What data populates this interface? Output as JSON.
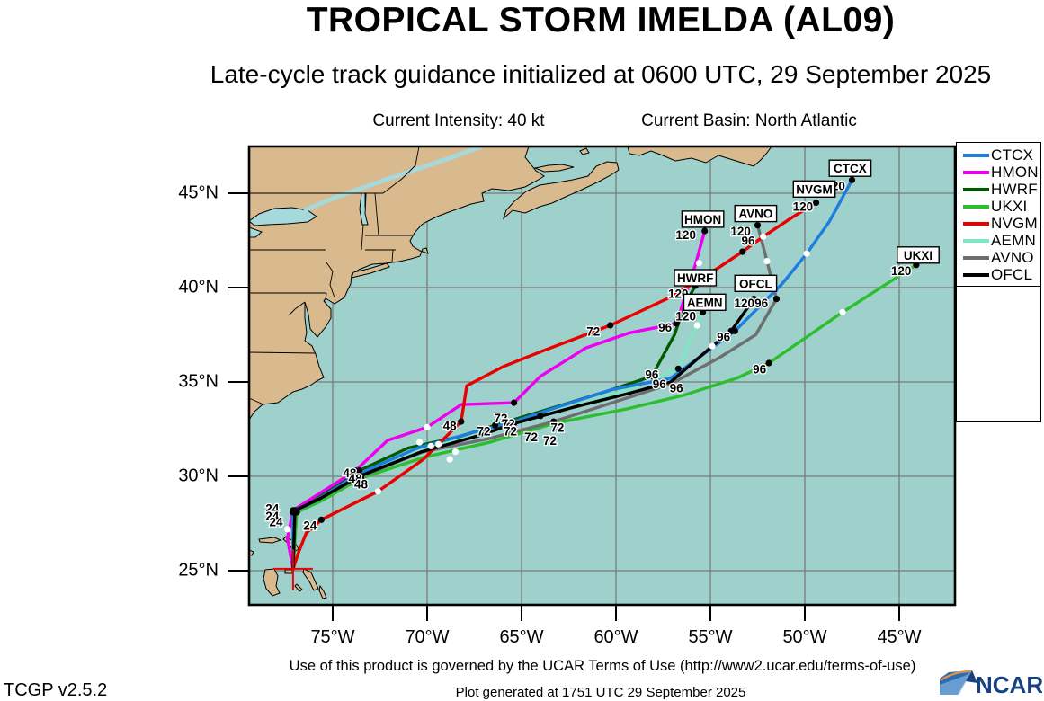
{
  "header": {
    "title": "TROPICAL STORM IMELDA (AL09)",
    "subtitle": "Late-cycle track guidance initialized at 0600 UTC, 29 September 2025",
    "intensity": "Current Intensity: 40 kt",
    "basin": "Current Basin: North Atlantic"
  },
  "footer": {
    "terms": "Use of this product is governed by the UCAR Terms of Use (http://www2.ucar.edu/terms-of-use)",
    "version": "TCGP v2.5.2",
    "generated": "Plot generated at 1751 UTC   29 September 2025",
    "logo_text": "NCAR"
  },
  "colors": {
    "ocean": "#9FD1CC",
    "land": "#D9BA8E",
    "lake": "#A6D9DB",
    "grid": "#7A7A7A",
    "frame": "#000000",
    "start_marker": "#EE0000"
  },
  "legend": {
    "items": [
      {
        "label": "CTCX",
        "color": "#1F7DE0"
      },
      {
        "label": "HMON",
        "color": "#EE00EE"
      },
      {
        "label": "HWRF",
        "color": "#005A00"
      },
      {
        "label": "UKXI",
        "color": "#2DBE2D"
      },
      {
        "label": "NVGM",
        "color": "#EA0000"
      },
      {
        "label": "AEMN",
        "color": "#7FE6C3"
      },
      {
        "label": "AVNO",
        "color": "#6E6E6E"
      },
      {
        "label": "OFCL",
        "color": "#000000"
      }
    ]
  },
  "axes": {
    "lat": [
      {
        "label": "45°N",
        "value": 45
      },
      {
        "label": "40°N",
        "value": 40
      },
      {
        "label": "35°N",
        "value": 35
      },
      {
        "label": "30°N",
        "value": 30
      },
      {
        "label": "25°N",
        "value": 25
      }
    ],
    "lon": [
      {
        "label": "75°W",
        "value": -75
      },
      {
        "label": "70°W",
        "value": -70
      },
      {
        "label": "65°W",
        "value": -65
      },
      {
        "label": "60°W",
        "value": -60
      },
      {
        "label": "55°W",
        "value": -55
      },
      {
        "label": "50°W",
        "value": -50
      },
      {
        "label": "45°W",
        "value": -45
      }
    ]
  },
  "chart_data": {
    "type": "line",
    "subtype": "tropical-cyclone-track-guidance-map",
    "title": "TROPICAL STORM IMELDA (AL09)",
    "init_time": "0600 UTC, 29 September 2025",
    "current_intensity_kt": 40,
    "basin": "North Atlantic",
    "lon_range": [
      -79.4,
      -42.0
    ],
    "lat_range": [
      23.2,
      47.5
    ],
    "grid": true,
    "legend_position": "top-right",
    "start": {
      "lon": -77.1,
      "lat": 25.1
    },
    "forecast_hours_labeled": [
      24,
      48,
      72,
      96,
      120
    ],
    "tracks": [
      {
        "name": "AEMN",
        "color": "#7FE6C3",
        "points": [
          [
            -77.1,
            25.1
          ],
          [
            -77.1,
            28.1
          ],
          [
            -76.0,
            28.8
          ],
          [
            -73.7,
            30.1
          ],
          [
            -70.5,
            31.4
          ],
          [
            -67.3,
            32.2
          ],
          [
            -64.0,
            33.2
          ],
          [
            -61.2,
            34.0
          ],
          [
            -58.8,
            34.8
          ],
          [
            -56.7,
            35.7
          ],
          [
            -56.0,
            37.4
          ],
          [
            -55.4,
            38.7
          ]
        ],
        "marks": [
          1,
          3,
          6,
          9,
          11
        ],
        "whites": [
          [
            -69.8,
            31.6
          ],
          [
            -55.7,
            38.0
          ]
        ]
      },
      {
        "name": "UKXI",
        "color": "#2DBE2D",
        "points": [
          [
            -77.1,
            25.1
          ],
          [
            -76.9,
            28.1
          ],
          [
            -75.6,
            28.7
          ],
          [
            -73.5,
            29.9
          ],
          [
            -70.2,
            31.0
          ],
          [
            -66.7,
            31.8
          ],
          [
            -63.3,
            32.8
          ],
          [
            -59.3,
            33.6
          ],
          [
            -56.4,
            34.3
          ],
          [
            -53.6,
            35.2
          ],
          [
            -51.9,
            36.0
          ],
          [
            -48.0,
            38.7
          ],
          [
            -44.1,
            41.2
          ]
        ],
        "marks": [
          1,
          3,
          6,
          10,
          12
        ],
        "whites": [
          [
            -68.8,
            30.9
          ],
          [
            -48.0,
            38.7
          ]
        ]
      },
      {
        "name": "AVNO",
        "color": "#6E6E6E",
        "points": [
          [
            -77.1,
            25.1
          ],
          [
            -77.0,
            28.1
          ],
          [
            -75.8,
            28.8
          ],
          [
            -73.5,
            30.0
          ],
          [
            -70.2,
            31.3
          ],
          [
            -66.7,
            32.0
          ],
          [
            -63.3,
            32.9
          ],
          [
            -60.2,
            33.9
          ],
          [
            -57.1,
            34.9
          ],
          [
            -54.5,
            36.3
          ],
          [
            -52.6,
            37.5
          ],
          [
            -51.5,
            39.4
          ],
          [
            -52.0,
            41.4
          ],
          [
            -52.5,
            43.3
          ]
        ],
        "marks": [
          1,
          3,
          6,
          11,
          13
        ],
        "whites": [
          [
            -68.5,
            31.3
          ],
          [
            -52.0,
            41.4
          ]
        ]
      },
      {
        "name": "HWRF",
        "color": "#005A00",
        "points": [
          [
            -77.1,
            25.1
          ],
          [
            -77.0,
            28.2
          ],
          [
            -75.9,
            28.9
          ],
          [
            -73.6,
            30.3
          ],
          [
            -71.0,
            31.5
          ],
          [
            -68.3,
            32.1
          ],
          [
            -66.4,
            32.7
          ],
          [
            -63.1,
            33.7
          ],
          [
            -60.5,
            34.5
          ],
          [
            -58.1,
            35.3
          ],
          [
            -56.9,
            37.5
          ],
          [
            -56.4,
            39.0
          ],
          [
            -55.8,
            40.1
          ]
        ],
        "marks": [
          1,
          3,
          6,
          9,
          12
        ],
        "whites": [
          [
            -70.4,
            31.8
          ],
          [
            -56.3,
            38.6
          ]
        ]
      },
      {
        "name": "HMON",
        "color": "#EE00EE",
        "points": [
          [
            -77.1,
            25.1
          ],
          [
            -77.4,
            26.7
          ],
          [
            -77.1,
            28.2
          ],
          [
            -76.0,
            28.9
          ],
          [
            -73.8,
            30.3
          ],
          [
            -72.1,
            31.9
          ],
          [
            -70.0,
            32.6
          ],
          [
            -68.2,
            33.8
          ],
          [
            -65.4,
            33.9
          ],
          [
            -64.0,
            35.3
          ],
          [
            -61.6,
            36.8
          ],
          [
            -59.3,
            37.6
          ],
          [
            -56.8,
            38.1
          ],
          [
            -55.8,
            41.2
          ],
          [
            -55.3,
            43.0
          ]
        ],
        "marks": [
          2,
          4,
          8,
          12,
          14
        ],
        "whites": [
          [
            -70.0,
            32.6
          ],
          [
            -55.6,
            41.3
          ]
        ]
      },
      {
        "name": "CTCX",
        "color": "#1F7DE0",
        "points": [
          [
            -77.1,
            25.1
          ],
          [
            -77.1,
            28.1
          ],
          [
            -75.9,
            28.7
          ],
          [
            -73.7,
            30.1
          ],
          [
            -70.5,
            31.5
          ],
          [
            -67.3,
            32.4
          ],
          [
            -65.7,
            32.8
          ],
          [
            -63.0,
            33.7
          ],
          [
            -60.2,
            34.6
          ],
          [
            -57.1,
            35.2
          ],
          [
            -53.7,
            37.7
          ],
          [
            -51.2,
            40.2
          ],
          [
            -49.9,
            41.8
          ],
          [
            -48.7,
            43.5
          ],
          [
            -47.5,
            45.7
          ]
        ],
        "marks": [
          1,
          3,
          6,
          10,
          14
        ],
        "whites": [
          [
            -69.4,
            31.7
          ],
          [
            -49.9,
            41.8
          ]
        ]
      },
      {
        "name": "NVGM",
        "color": "#EA0000",
        "points": [
          [
            -77.1,
            25.1
          ],
          [
            -76.8,
            26.0
          ],
          [
            -76.4,
            27.0
          ],
          [
            -75.6,
            27.7
          ],
          [
            -72.6,
            29.2
          ],
          [
            -70.2,
            30.9
          ],
          [
            -68.2,
            32.9
          ],
          [
            -67.9,
            34.8
          ],
          [
            -66.0,
            35.8
          ],
          [
            -64.0,
            36.6
          ],
          [
            -60.3,
            38.0
          ],
          [
            -57.1,
            39.5
          ],
          [
            -54.5,
            41.1
          ],
          [
            -53.3,
            41.9
          ],
          [
            -52.2,
            42.7
          ],
          [
            -50.7,
            43.7
          ],
          [
            -49.4,
            44.5
          ]
        ],
        "marks": [
          3,
          6,
          10,
          13,
          16
        ],
        "whites": [
          [
            -72.6,
            29.2
          ],
          [
            -52.2,
            42.7
          ]
        ]
      },
      {
        "name": "OFCL",
        "color": "#000000",
        "points": [
          [
            -77.1,
            25.1
          ],
          [
            -77.0,
            28.2
          ],
          [
            -75.7,
            28.8
          ],
          [
            -73.6,
            30.0
          ],
          [
            -70.3,
            31.3
          ],
          [
            -67.1,
            32.2
          ],
          [
            -65.4,
            32.8
          ],
          [
            -62.1,
            33.7
          ],
          [
            -59.3,
            34.4
          ],
          [
            -57.1,
            35.0
          ],
          [
            -54.9,
            36.9
          ],
          [
            -53.9,
            37.7
          ],
          [
            -52.7,
            39.4
          ]
        ],
        "marks": [
          1,
          3,
          6,
          11,
          12
        ],
        "whites": [
          [
            -77.4,
            27.2
          ],
          [
            -54.9,
            36.9
          ]
        ]
      }
    ],
    "hour_labels": [
      {
        "text": "24",
        "lon": -78.2,
        "lat": 28.3
      },
      {
        "text": "24",
        "lon": -78.2,
        "lat": 27.9
      },
      {
        "text": "24",
        "lon": -78.0,
        "lat": 27.6
      },
      {
        "text": "24",
        "lon": -76.2,
        "lat": 27.4
      },
      {
        "text": "48",
        "lon": -74.1,
        "lat": 30.2
      },
      {
        "text": "48",
        "lon": -73.8,
        "lat": 29.9
      },
      {
        "text": "48",
        "lon": -73.5,
        "lat": 29.6
      },
      {
        "text": "48",
        "lon": -68.8,
        "lat": 32.7
      },
      {
        "text": "72",
        "lon": -67.0,
        "lat": 32.4
      },
      {
        "text": "72",
        "lon": -66.1,
        "lat": 33.1
      },
      {
        "text": "72",
        "lon": -65.7,
        "lat": 32.8
      },
      {
        "text": "72",
        "lon": -65.6,
        "lat": 32.4
      },
      {
        "text": "72",
        "lon": -64.5,
        "lat": 32.1
      },
      {
        "text": "72",
        "lon": -63.1,
        "lat": 32.6
      },
      {
        "text": "72",
        "lon": -63.5,
        "lat": 31.9
      },
      {
        "text": "72",
        "lon": -61.2,
        "lat": 37.7
      },
      {
        "text": "96",
        "lon": -57.4,
        "lat": 37.9
      },
      {
        "text": "96",
        "lon": -58.1,
        "lat": 35.4
      },
      {
        "text": "96",
        "lon": -57.7,
        "lat": 34.9
      },
      {
        "text": "96",
        "lon": -56.8,
        "lat": 34.7
      },
      {
        "text": "96",
        "lon": -54.3,
        "lat": 37.4
      },
      {
        "text": "96",
        "lon": -52.4,
        "lat": 35.7
      },
      {
        "text": "96",
        "lon": -53.0,
        "lat": 42.5
      },
      {
        "text": "96",
        "lon": -52.3,
        "lat": 39.2
      },
      {
        "text": "120",
        "lon": -56.3,
        "lat": 42.8
      },
      {
        "text": "120",
        "lon": -50.1,
        "lat": 44.3
      },
      {
        "text": "120",
        "lon": -48.4,
        "lat": 45.4
      },
      {
        "text": "120",
        "lon": -53.4,
        "lat": 43.0
      },
      {
        "text": "120",
        "lon": -44.9,
        "lat": 40.9
      },
      {
        "text": "120",
        "lon": -56.7,
        "lat": 39.7
      },
      {
        "text": "120",
        "lon": -56.3,
        "lat": 38.5
      },
      {
        "text": "120",
        "lon": -53.2,
        "lat": 39.2
      }
    ],
    "model_labels": [
      {
        "text": "HMON",
        "lon": -55.4,
        "lat": 43.6
      },
      {
        "text": "NVGM",
        "lon": -49.5,
        "lat": 45.2
      },
      {
        "text": "CTCX",
        "lon": -47.6,
        "lat": 46.3
      },
      {
        "text": "AVNO",
        "lon": -52.6,
        "lat": 43.9
      },
      {
        "text": "UKXI",
        "lon": -44.0,
        "lat": 41.7
      },
      {
        "text": "HWRF",
        "lon": -55.8,
        "lat": 40.5
      },
      {
        "text": "AEMN",
        "lon": -55.3,
        "lat": 39.2
      },
      {
        "text": "OFCL",
        "lon": -52.6,
        "lat": 40.2
      }
    ]
  }
}
